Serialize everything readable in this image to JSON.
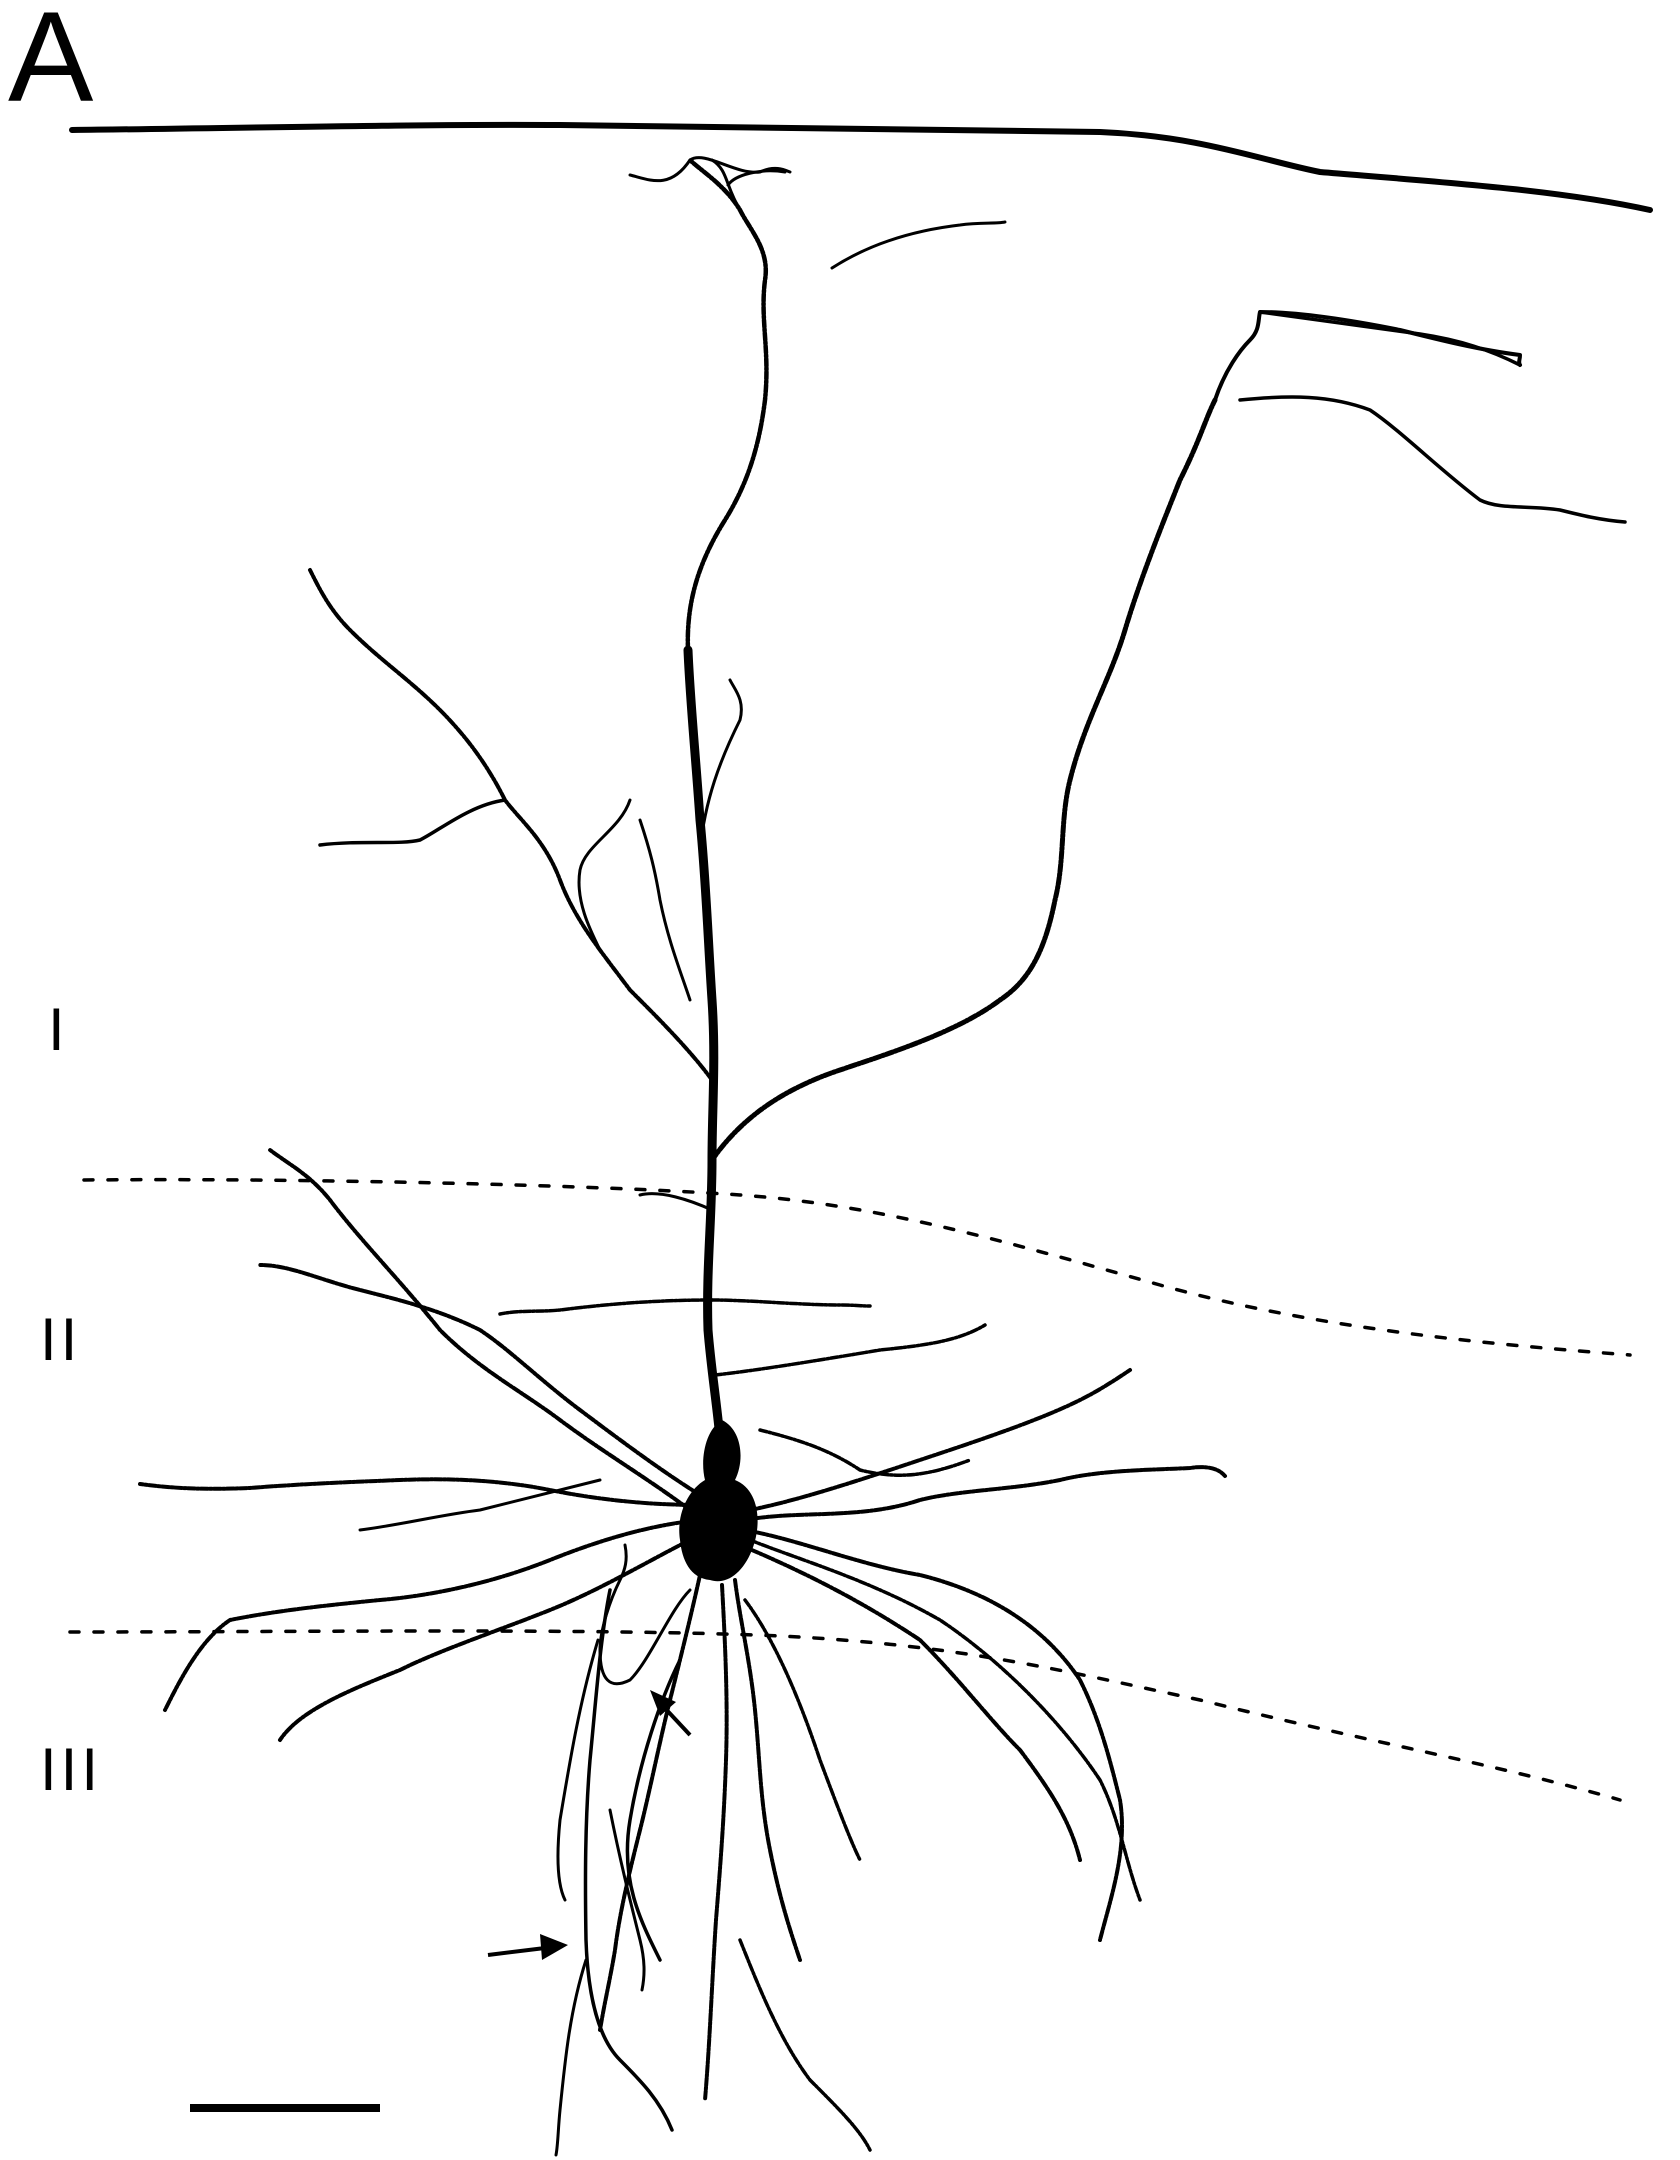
{
  "panel_label": "A",
  "layers": {
    "layer_1": "I",
    "layer_2": "II",
    "layer_3": "III"
  },
  "colors": {
    "ink": "#000000",
    "background": "#ffffff"
  }
}
